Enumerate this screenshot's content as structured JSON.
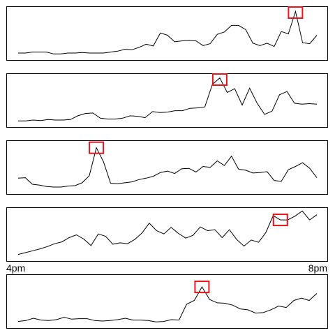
{
  "colors": {
    "line": "#000000",
    "frame": "#000000",
    "highlight": "#e8141c",
    "background": "#ffffff"
  },
  "time_axis": {
    "start_label": "4pm",
    "end_label": "8pm"
  },
  "chart_data": [
    {
      "type": "line",
      "title": "",
      "xlabel": "",
      "ylabel": "",
      "grid": false,
      "x_range": [
        0,
        39
      ],
      "ylim": [
        0,
        100
      ],
      "values": [
        6,
        6,
        8,
        8,
        8,
        4,
        4,
        6,
        6,
        7,
        6,
        6,
        6,
        8,
        10,
        14,
        13,
        18,
        25,
        21,
        49,
        44,
        30,
        32,
        33,
        32,
        22,
        26,
        46,
        51,
        65,
        65,
        56,
        27,
        22,
        27,
        20,
        52,
        47,
        95,
        28,
        26,
        44
      ],
      "highlight_index": 39
    },
    {
      "type": "line",
      "title": "",
      "xlabel": "",
      "ylabel": "",
      "grid": false,
      "x_range": [
        0,
        39
      ],
      "ylim": [
        0,
        100
      ],
      "values": [
        4,
        4,
        6,
        5,
        7,
        6,
        6,
        7,
        15,
        20,
        21,
        10,
        8,
        8,
        10,
        15,
        14,
        11,
        24,
        22,
        23,
        26,
        26,
        31,
        32,
        34,
        82,
        96,
        65,
        73,
        38,
        74,
        42,
        18,
        25,
        60,
        67,
        42,
        40,
        41,
        40
      ],
      "highlight_index": 27
    },
    {
      "type": "line",
      "title": "",
      "xlabel": "",
      "ylabel": "",
      "grid": false,
      "x_range": [
        0,
        39
      ],
      "ylim": [
        0,
        100
      ],
      "values": [
        25,
        26,
        12,
        10,
        7,
        6,
        6,
        8,
        9,
        15,
        30,
        90,
        60,
        14,
        13,
        15,
        17,
        22,
        25,
        29,
        37,
        40,
        35,
        45,
        46,
        38,
        50,
        48,
        62,
        52,
        72,
        44,
        42,
        36,
        37,
        39,
        20,
        18,
        43,
        50,
        58,
        46,
        26
      ],
      "highlight_index": 11
    },
    {
      "type": "line",
      "title": "",
      "xlabel": "",
      "ylabel": "",
      "grid": false,
      "x_range": [
        0,
        39
      ],
      "ylim": [
        0,
        100
      ],
      "values": [
        5,
        9,
        13,
        17,
        22,
        28,
        32,
        41,
        47,
        38,
        24,
        49,
        44,
        27,
        30,
        28,
        37,
        51,
        72,
        56,
        49,
        63,
        50,
        40,
        46,
        64,
        56,
        58,
        41,
        58,
        37,
        23,
        36,
        31,
        52,
        88,
        79,
        79,
        87,
        98,
        79,
        90
      ],
      "highlight_index": 36
    },
    {
      "type": "line",
      "title": "",
      "xlabel": "",
      "ylabel": "",
      "grid": false,
      "x_range": [
        0,
        39
      ],
      "ylim": [
        0,
        100
      ],
      "values": [
        5,
        7,
        12,
        8,
        7,
        9,
        14,
        10,
        11,
        11,
        7,
        6,
        7,
        9,
        12,
        8,
        8,
        7,
        4,
        5,
        9,
        8,
        42,
        50,
        79,
        52,
        45,
        44,
        40,
        32,
        30,
        23,
        24,
        30,
        38,
        35,
        50,
        55,
        50,
        65
      ],
      "highlight_index": 24
    }
  ]
}
